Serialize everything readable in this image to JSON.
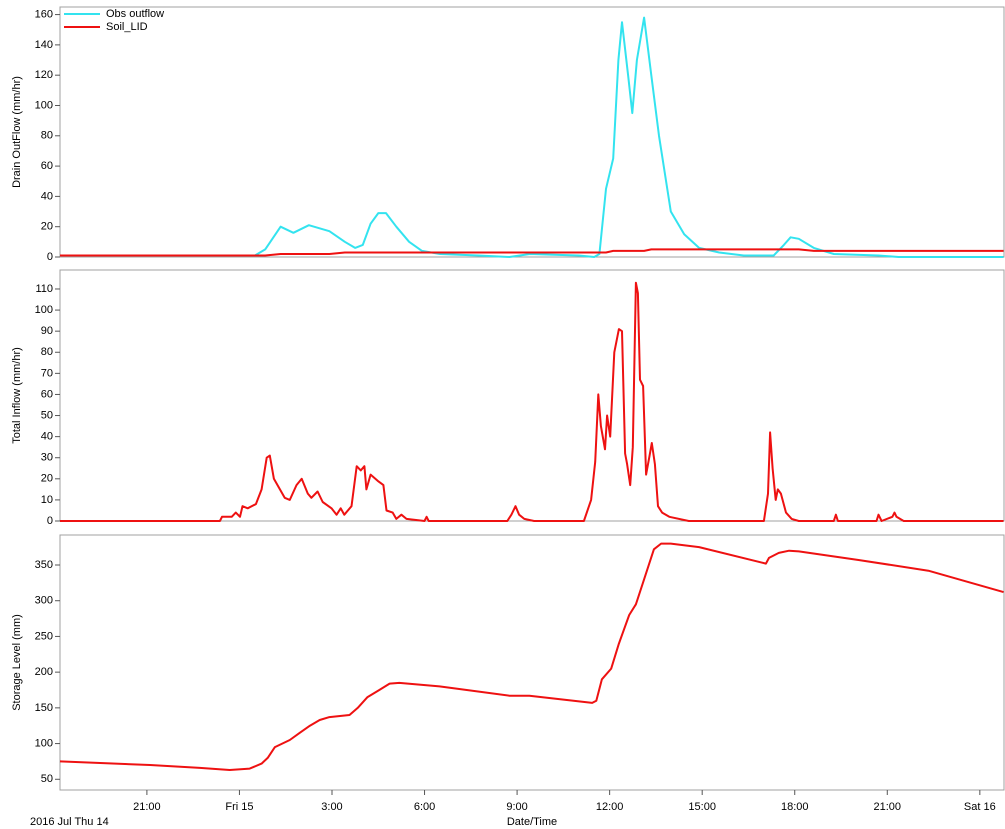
{
  "chart_data": [
    {
      "type": "line",
      "y_label": "Drain OutFlow (mm/hr)",
      "xlim": [
        "2016-07-14T18:11",
        "2016-07-16T00:47"
      ],
      "ylim": [
        0,
        165
      ],
      "yticks": [
        0,
        20,
        40,
        60,
        80,
        100,
        120,
        140,
        160
      ],
      "legend": "top-left",
      "x": [
        "2016-07-14T18:11",
        "2016-07-15T00:30",
        "2016-07-15T00:50",
        "2016-07-15T01:20",
        "2016-07-15T01:45",
        "2016-07-15T02:15",
        "2016-07-15T02:55",
        "2016-07-15T03:25",
        "2016-07-15T03:45",
        "2016-07-15T04:00",
        "2016-07-15T04:15",
        "2016-07-15T04:30",
        "2016-07-15T04:45",
        "2016-07-15T05:05",
        "2016-07-15T05:30",
        "2016-07-15T05:55",
        "2016-07-15T06:30",
        "2016-07-15T07:45",
        "2016-07-15T08:45",
        "2016-07-15T09:25",
        "2016-07-15T11:00",
        "2016-07-15T11:30",
        "2016-07-15T11:40",
        "2016-07-15T11:53",
        "2016-07-15T12:07",
        "2016-07-15T12:17",
        "2016-07-15T12:24",
        "2016-07-15T12:36",
        "2016-07-15T12:44",
        "2016-07-15T12:53",
        "2016-07-15T13:07",
        "2016-07-15T13:21",
        "2016-07-15T13:36",
        "2016-07-15T13:59",
        "2016-07-15T14:25",
        "2016-07-15T14:54",
        "2016-07-15T15:33",
        "2016-07-15T16:21",
        "2016-07-15T17:19",
        "2016-07-15T17:39",
        "2016-07-15T17:52",
        "2016-07-15T18:08",
        "2016-07-15T18:37",
        "2016-07-15T19:16",
        "2016-07-15T20:43",
        "2016-07-15T21:22",
        "2016-07-16T00:46"
      ],
      "series": [
        {
          "name": "Obs outflow",
          "color": "#33e3ef",
          "values": [
            1,
            1,
            5,
            20,
            16,
            21,
            17,
            10,
            6,
            8,
            22,
            29,
            29,
            20,
            10,
            4,
            2,
            1,
            0,
            2,
            1,
            0,
            2,
            45,
            65,
            130,
            155,
            120,
            95,
            130,
            158,
            120,
            80,
            30,
            15,
            6,
            3,
            1,
            1,
            8,
            13,
            12,
            6,
            2,
            1,
            0,
            0
          ]
        },
        {
          "name": "Soil_LID",
          "color": "#ee1111",
          "values": [
            1,
            1,
            1,
            2,
            2,
            2,
            2,
            3,
            3,
            3,
            3,
            3,
            3,
            3,
            3,
            3,
            3,
            3,
            3,
            3,
            3,
            3,
            3,
            3,
            4,
            4,
            4,
            4,
            4,
            4,
            4,
            5,
            5,
            5,
            5,
            5,
            5,
            5,
            5,
            5,
            5,
            5,
            4,
            4,
            4,
            4,
            4
          ]
        }
      ]
    },
    {
      "type": "line",
      "y_label": "Total Inflow (mm/hr)",
      "color": "#ee1111",
      "xlim": [
        "2016-07-14T18:11",
        "2016-07-16T00:47"
      ],
      "ylim": [
        0,
        119
      ],
      "yticks": [
        0,
        10,
        20,
        30,
        40,
        50,
        60,
        70,
        80,
        90,
        100,
        110
      ],
      "x": [
        "2016-07-14T18:11",
        "2016-07-14T23:22",
        "2016-07-14T23:26",
        "2016-07-14T23:45",
        "2016-07-14T23:53",
        "2016-07-15T00:01",
        "2016-07-15T00:06",
        "2016-07-15T00:16",
        "2016-07-15T00:32",
        "2016-07-15T00:43",
        "2016-07-15T00:53",
        "2016-07-15T00:59",
        "2016-07-15T01:07",
        "2016-07-15T01:28",
        "2016-07-15T01:38",
        "2016-07-15T01:51",
        "2016-07-15T02:01",
        "2016-07-15T02:13",
        "2016-07-15T02:20",
        "2016-07-15T02:32",
        "2016-07-15T02:42",
        "2016-07-15T02:59",
        "2016-07-15T03:09",
        "2016-07-15T03:17",
        "2016-07-15T03:24",
        "2016-07-15T03:38",
        "2016-07-15T03:48",
        "2016-07-15T03:56",
        "2016-07-15T04:03",
        "2016-07-15T04:07",
        "2016-07-15T04:15",
        "2016-07-15T04:29",
        "2016-07-15T04:40",
        "2016-07-15T04:46",
        "2016-07-15T04:58",
        "2016-07-15T05:05",
        "2016-07-15T05:15",
        "2016-07-15T05:25",
        "2016-07-15T06:00",
        "2016-07-15T06:04",
        "2016-07-15T06:08",
        "2016-07-15T06:43",
        "2016-07-15T08:41",
        "2016-07-15T08:49",
        "2016-07-15T08:57",
        "2016-07-15T09:04",
        "2016-07-15T09:14",
        "2016-07-15T09:33",
        "2016-07-15T11:10",
        "2016-07-15T11:24",
        "2016-07-15T11:32",
        "2016-07-15T11:38",
        "2016-07-15T11:43",
        "2016-07-15T11:51",
        "2016-07-15T11:55",
        "2016-07-15T12:01",
        "2016-07-15T12:09",
        "2016-07-15T12:18",
        "2016-07-15T12:24",
        "2016-07-15T12:30",
        "2016-07-15T12:34",
        "2016-07-15T12:40",
        "2016-07-15T12:45",
        "2016-07-15T12:51",
        "2016-07-15T12:55",
        "2016-07-15T12:59",
        "2016-07-15T13:05",
        "2016-07-15T13:11",
        "2016-07-15T13:17",
        "2016-07-15T13:22",
        "2016-07-15T13:28",
        "2016-07-15T13:34",
        "2016-07-15T13:42",
        "2016-07-15T13:56",
        "2016-07-15T14:34",
        "2016-07-15T17:00",
        "2016-07-15T17:08",
        "2016-07-15T17:12",
        "2016-07-15T17:17",
        "2016-07-15T17:23",
        "2016-07-15T17:27",
        "2016-07-15T17:33",
        "2016-07-15T17:43",
        "2016-07-15T17:54",
        "2016-07-15T18:08",
        "2016-07-15T19:16",
        "2016-07-15T19:20",
        "2016-07-15T19:24",
        "2016-07-15T20:39",
        "2016-07-15T20:43",
        "2016-07-15T20:49",
        "2016-07-15T21:10",
        "2016-07-15T21:14",
        "2016-07-15T21:18",
        "2016-07-15T21:32",
        "2016-07-15T22:11",
        "2016-07-16T00:46"
      ],
      "values": [
        0,
        0,
        2,
        2,
        4,
        2,
        7,
        6,
        8,
        15,
        30,
        31,
        20,
        11,
        10,
        17,
        20,
        13,
        11,
        14,
        9,
        6,
        3,
        6,
        3,
        7,
        26,
        24,
        26,
        15,
        22,
        19,
        17,
        5,
        4,
        1,
        3,
        1,
        0,
        2,
        0,
        0,
        0,
        3,
        7,
        3,
        1,
        0,
        0,
        10,
        28,
        60,
        45,
        34,
        50,
        40,
        80,
        91,
        90,
        32,
        27,
        17,
        35,
        113,
        108,
        67,
        64,
        22,
        30,
        37,
        27,
        7,
        4,
        2,
        0,
        0,
        13,
        42,
        25,
        10,
        15,
        13,
        4,
        1,
        0,
        0,
        3,
        0,
        0,
        3,
        0,
        2,
        4,
        2,
        0,
        0,
        0
      ]
    },
    {
      "type": "line",
      "y_label": "Storage Level (mm)",
      "color": "#ee1111",
      "x_label": "Date/Time",
      "x_start_label": "2016 Jul Thu 14",
      "xlim": [
        "2016-07-14T18:11",
        "2016-07-16T00:47"
      ],
      "ylim": [
        35,
        392
      ],
      "yticks": [
        50,
        100,
        150,
        200,
        250,
        300,
        350
      ],
      "xticks": [
        {
          "value": "2016-07-14T21:00",
          "label": "21:00"
        },
        {
          "value": "2016-07-15T00:00",
          "label": "Fri 15"
        },
        {
          "value": "2016-07-15T03:00",
          "label": "3:00"
        },
        {
          "value": "2016-07-15T06:00",
          "label": "6:00"
        },
        {
          "value": "2016-07-15T09:00",
          "label": "9:00"
        },
        {
          "value": "2016-07-15T12:00",
          "label": "12:00"
        },
        {
          "value": "2016-07-15T15:00",
          "label": "15:00"
        },
        {
          "value": "2016-07-15T18:00",
          "label": "18:00"
        },
        {
          "value": "2016-07-15T21:00",
          "label": "21:00"
        },
        {
          "value": "2016-07-16T00:00",
          "label": "Sat 16"
        }
      ],
      "x": [
        "2016-07-14T18:11",
        "2016-07-14T21:06",
        "2016-07-14T22:43",
        "2016-07-14T23:41",
        "2016-07-15T00:20",
        "2016-07-15T00:43",
        "2016-07-15T00:55",
        "2016-07-15T01:09",
        "2016-07-15T01:38",
        "2016-07-15T01:57",
        "2016-07-15T02:17",
        "2016-07-15T02:36",
        "2016-07-15T02:55",
        "2016-07-15T03:34",
        "2016-07-15T03:50",
        "2016-07-15T04:09",
        "2016-07-15T04:32",
        "2016-07-15T04:52",
        "2016-07-15T05:11",
        "2016-07-15T06:29",
        "2016-07-15T08:45",
        "2016-07-15T09:24",
        "2016-07-15T11:26",
        "2016-07-15T11:34",
        "2016-07-15T11:45",
        "2016-07-15T12:03",
        "2016-07-15T12:18",
        "2016-07-15T12:38",
        "2016-07-15T12:51",
        "2016-07-15T13:07",
        "2016-07-15T13:26",
        "2016-07-15T13:40",
        "2016-07-15T13:59",
        "2016-07-15T14:54",
        "2016-07-15T17:04",
        "2016-07-15T17:10",
        "2016-07-15T17:29",
        "2016-07-15T17:49",
        "2016-07-15T18:08",
        "2016-07-15T20:04",
        "2016-07-15T22:20",
        "2016-07-16T00:46"
      ],
      "values": [
        75,
        70,
        66,
        63,
        65,
        72,
        80,
        95,
        105,
        115,
        125,
        133,
        137,
        140,
        150,
        165,
        175,
        184,
        185,
        180,
        167,
        167,
        157,
        160,
        190,
        205,
        240,
        280,
        295,
        330,
        372,
        380,
        380,
        375,
        352,
        360,
        367,
        370,
        369,
        357,
        342,
        312
      ]
    }
  ]
}
